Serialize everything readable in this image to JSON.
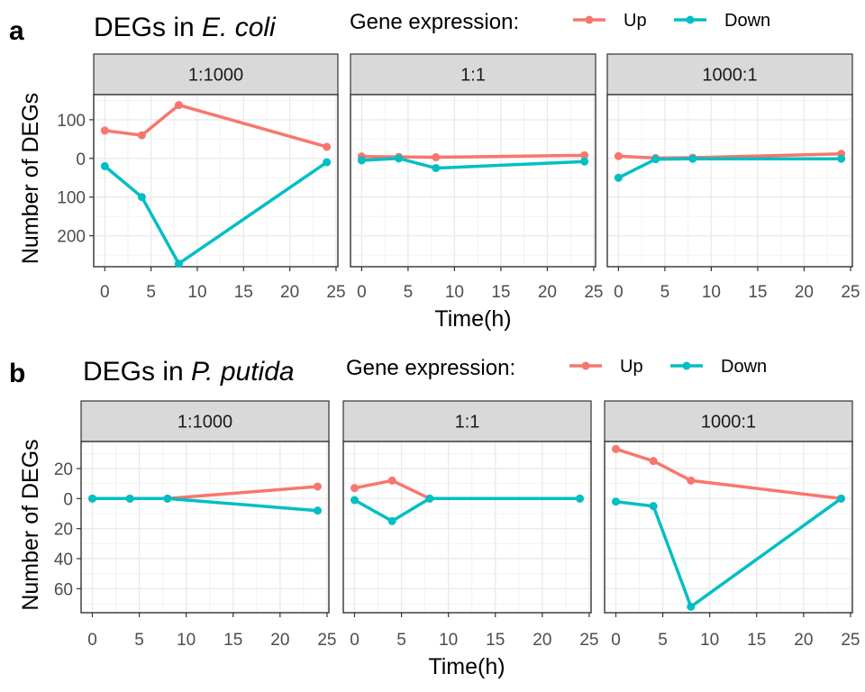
{
  "colors": {
    "up": "#F8766D",
    "down": "#00BFC4"
  },
  "chart_data": [
    {
      "type": "line",
      "panel_letter": "a",
      "title_prefix": "DEGs in ",
      "title_italic": "E. coli",
      "legend": {
        "title": "Gene expression:",
        "entries": [
          "Up",
          "Down"
        ],
        "position": "top"
      },
      "xlabel": "Time(h)",
      "ylabel": "Number of DEGs",
      "xlim": [
        -1.2,
        25.2
      ],
      "ylim": [
        -280,
        165
      ],
      "x_ticks": [
        0,
        5,
        10,
        15,
        20,
        25
      ],
      "y_ticks": [
        100,
        0,
        -100,
        -200
      ],
      "y_tick_labels": [
        "100",
        "0",
        "100",
        "200"
      ],
      "grid": true,
      "facets": [
        {
          "label": "1:1000",
          "series": [
            {
              "name": "Up",
              "x": [
                0,
                4,
                8,
                24
              ],
              "y": [
                72,
                60,
                138,
                30
              ]
            },
            {
              "name": "Down",
              "x": [
                0,
                4,
                8,
                24
              ],
              "y": [
                -20,
                -100,
                -272,
                -10
              ]
            }
          ]
        },
        {
          "label": "1:1",
          "series": [
            {
              "name": "Up",
              "x": [
                0,
                4,
                8,
                24
              ],
              "y": [
                5,
                4,
                3,
                8
              ]
            },
            {
              "name": "Down",
              "x": [
                0,
                4,
                8,
                24
              ],
              "y": [
                -5,
                0,
                -25,
                -8
              ]
            }
          ]
        },
        {
          "label": "1000:1",
          "series": [
            {
              "name": "Up",
              "x": [
                0,
                4,
                8,
                24
              ],
              "y": [
                6,
                1,
                2,
                12
              ]
            },
            {
              "name": "Down",
              "x": [
                0,
                4,
                8,
                24
              ],
              "y": [
                -50,
                -2,
                -1,
                -1
              ]
            }
          ]
        }
      ]
    },
    {
      "type": "line",
      "panel_letter": "b",
      "title_prefix": "DEGs in ",
      "title_italic": "P. putida",
      "legend": {
        "title": "Gene expression:",
        "entries": [
          "Up",
          "Down"
        ],
        "position": "top"
      },
      "xlabel": "Time(h)",
      "ylabel": "Number of DEGs",
      "xlim": [
        -1.2,
        25.2
      ],
      "ylim": [
        -76,
        38
      ],
      "x_ticks": [
        0,
        5,
        10,
        15,
        20,
        25
      ],
      "y_ticks": [
        20,
        0,
        -20,
        -40,
        -60
      ],
      "y_tick_labels": [
        "20",
        "0",
        "20",
        "40",
        "60"
      ],
      "grid": true,
      "facets": [
        {
          "label": "1:1000",
          "series": [
            {
              "name": "Up",
              "x": [
                0,
                4,
                8,
                24
              ],
              "y": [
                0,
                0,
                0,
                8
              ]
            },
            {
              "name": "Down",
              "x": [
                0,
                4,
                8,
                24
              ],
              "y": [
                0,
                0,
                0,
                -8
              ]
            }
          ]
        },
        {
          "label": "1:1",
          "series": [
            {
              "name": "Up",
              "x": [
                0,
                4,
                8,
                24
              ],
              "y": [
                7,
                12,
                0,
                0
              ]
            },
            {
              "name": "Down",
              "x": [
                0,
                4,
                8,
                24
              ],
              "y": [
                -1,
                -15,
                0,
                0
              ]
            }
          ]
        },
        {
          "label": "1000:1",
          "series": [
            {
              "name": "Up",
              "x": [
                0,
                4,
                8,
                24
              ],
              "y": [
                33,
                25,
                12,
                0
              ]
            },
            {
              "name": "Down",
              "x": [
                0,
                4,
                8,
                24
              ],
              "y": [
                -2,
                -5,
                -72,
                0
              ]
            }
          ]
        }
      ]
    }
  ]
}
